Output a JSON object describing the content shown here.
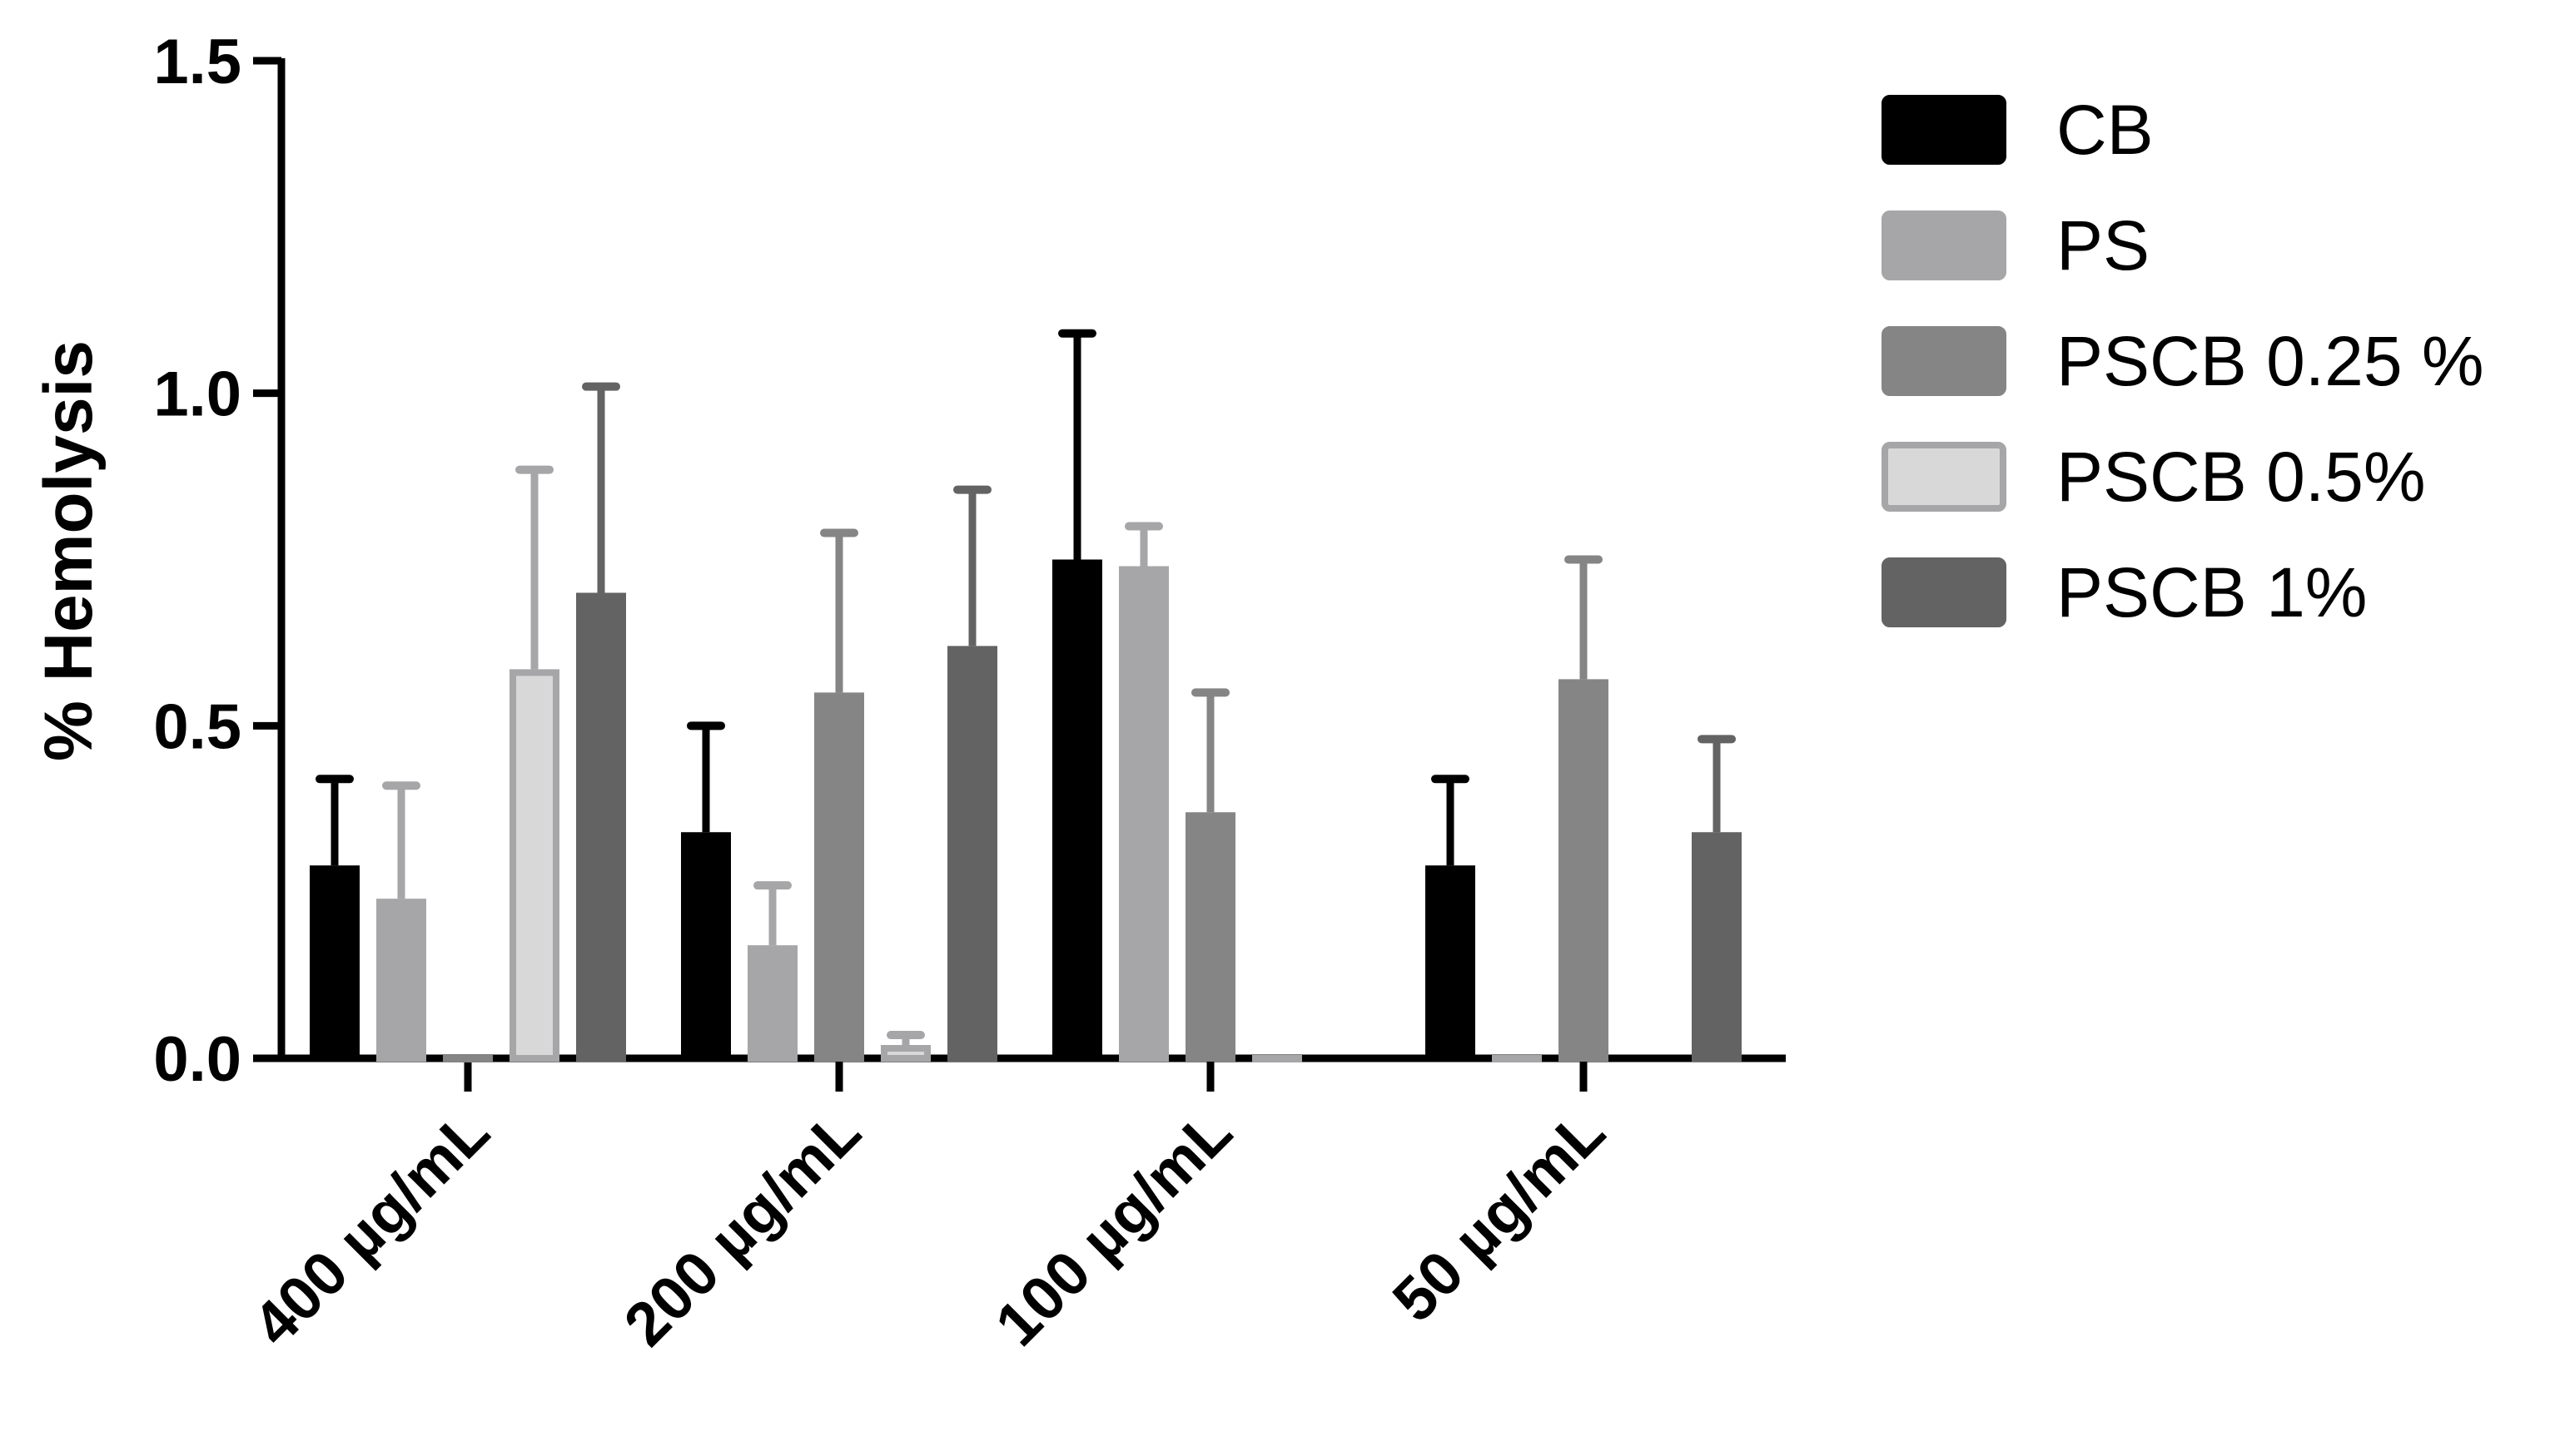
{
  "chart_data": {
    "type": "bar",
    "title": "",
    "xlabel": "",
    "ylabel": "% Hemolysis",
    "ylim": [
      0,
      1.5
    ],
    "yticks": [
      "0.0",
      "0.5",
      "1.0",
      "1.5"
    ],
    "ytick_values": [
      0,
      0.5,
      1.0,
      1.5
    ],
    "grid": false,
    "legend_position": "right",
    "categories": [
      "400 µg/mL",
      "200 µg/mL",
      "100 µg/mL",
      "50 µg/mL"
    ],
    "series": [
      {
        "name": "CB",
        "color": "#000000",
        "border": "#000000",
        "values": [
          0.29,
          0.34,
          0.75,
          0.29
        ],
        "errors": [
          0.13,
          0.16,
          0.34,
          0.13
        ]
      },
      {
        "name": "PS",
        "color": "#a6a6a8",
        "border": "#a6a6a8",
        "values": [
          0.24,
          0.17,
          0.74,
          0.005
        ],
        "errors": [
          0.17,
          0.09,
          0.06,
          0.0
        ]
      },
      {
        "name": "PSCB 0.25 %",
        "color": "#858585",
        "border": "#858585",
        "values": [
          0.005,
          0.55,
          0.37,
          0.57
        ],
        "errors": [
          0.0,
          0.24,
          0.18,
          0.18
        ]
      },
      {
        "name": "PSCB 0.5%",
        "color": "#d8d8d8",
        "border": "#a6a6a8",
        "values": [
          0.585,
          0.02,
          0.005,
          null
        ],
        "errors": [
          0.3,
          0.015,
          0.0,
          null
        ]
      },
      {
        "name": "PSCB 1%",
        "color": "#636363",
        "border": "#636363",
        "values": [
          0.7,
          0.62,
          null,
          0.34
        ],
        "errors": [
          0.31,
          0.235,
          null,
          0.14
        ]
      }
    ]
  }
}
